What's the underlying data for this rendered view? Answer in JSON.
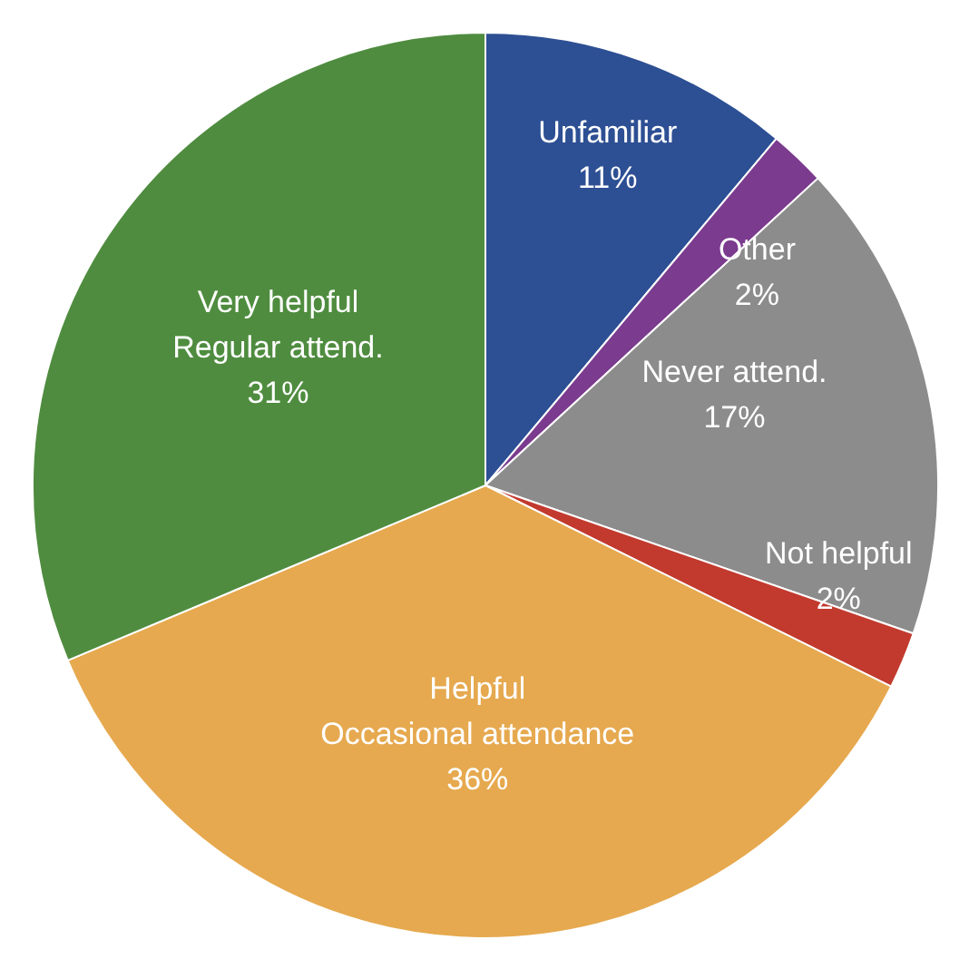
{
  "chart_data": {
    "type": "pie",
    "categories": [
      "Unfamiliar",
      "Other",
      "Never attend.",
      "Not helpful",
      "Helpful\nOccasional attendance",
      "Very helpful\nRegular attend."
    ],
    "values": [
      11,
      2,
      17,
      2,
      36,
      31
    ],
    "colors": [
      "#2d4f93",
      "#7b3b8e",
      "#8c8c8c",
      "#c23a2e",
      "#e6a94f",
      "#4f8c3f"
    ],
    "value_labels": [
      "11%",
      "2%",
      "17%",
      "2%",
      "36%",
      "31%"
    ],
    "legend": false
  }
}
